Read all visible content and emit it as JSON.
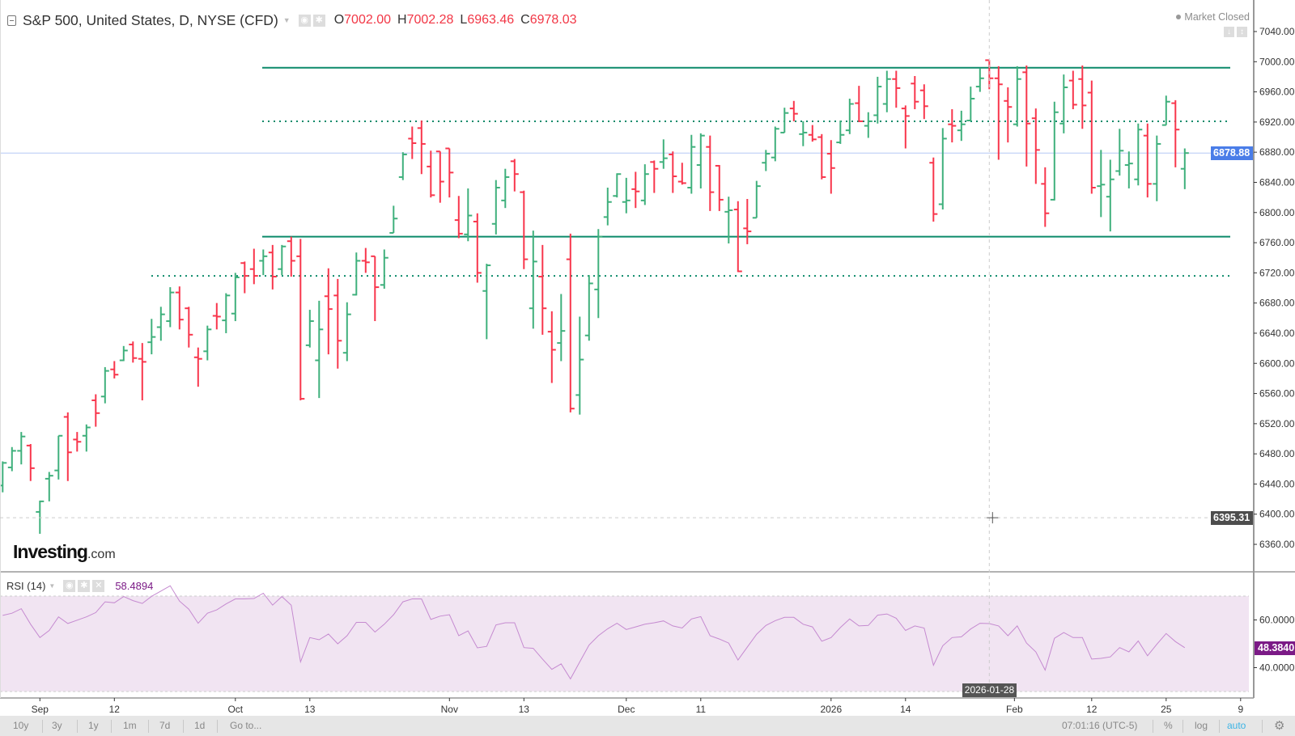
{
  "header": {
    "title": "S&P 500, United States, D, NYSE (CFD)",
    "ohlc": {
      "o_label": "O",
      "o": "7002.00",
      "h_label": "H",
      "h": "7002.28",
      "l_label": "L",
      "l": "6963.46",
      "c_label": "C",
      "c": "6978.03"
    },
    "market_status": "Market Closed"
  },
  "logo": {
    "brand": "Investing",
    "suffix": ".com"
  },
  "price_axis": {
    "ticks": [
      "7040.00",
      "7000.00",
      "6960.00",
      "6920.00",
      "6880.00",
      "6840.00",
      "6800.00",
      "6760.00",
      "6720.00",
      "6680.00",
      "6640.00",
      "6600.00",
      "6560.00",
      "6520.00",
      "6480.00",
      "6440.00",
      "6400.00",
      "6360.00"
    ],
    "last_price": "6878.88",
    "crosshair_price": "6395.31"
  },
  "rsi": {
    "label": "RSI (14)",
    "value": "58.4894",
    "last_value": "48.3840",
    "ticks": [
      "60.0000",
      "40.0000"
    ]
  },
  "time_axis": {
    "labels": [
      "Sep",
      "12",
      "Oct",
      "13",
      "Nov",
      "13",
      "Dec",
      "11",
      "2026",
      "14",
      "Feb",
      "12",
      "25",
      "9"
    ],
    "crosshair_date": "2026-01-28"
  },
  "toolbar": {
    "ranges": [
      "10y",
      "3y",
      "1y",
      "1m",
      "7d",
      "1d"
    ],
    "goto": "Go to...",
    "clock": "07:01:16 (UTC-5)",
    "percent": "%",
    "log": "log",
    "auto": "auto"
  },
  "colors": {
    "up": "#3fb07c",
    "down": "#f8364c",
    "level": "#0b8a6a",
    "last_price": "#4a7de8",
    "rsi_line": "#c58ad0",
    "rsi_fill": "#f1e4f2",
    "auto": "#3bb4e5"
  },
  "chart_data": {
    "type": "ohlc",
    "interval": "D",
    "ylim": [
      6340,
      7060
    ],
    "levels": [
      {
        "price": 6992,
        "style": "solid"
      },
      {
        "price": 6921,
        "style": "dotted"
      },
      {
        "price": 6768,
        "style": "solid"
      },
      {
        "price": 6716,
        "style": "dotted"
      }
    ],
    "bars": [
      [
        6438,
        6470,
        6429,
        6468
      ],
      [
        6462,
        6489,
        6457,
        6484
      ],
      [
        6484,
        6509,
        6466,
        6503
      ],
      [
        6491,
        6493,
        6444,
        6461
      ],
      [
        6403,
        6418,
        6374,
        6417
      ],
      [
        6447,
        6456,
        6417,
        6451
      ],
      [
        6458,
        6504,
        6446,
        6504
      ],
      [
        6529,
        6535,
        6444,
        6482
      ],
      [
        6499,
        6509,
        6483,
        6496
      ],
      [
        6504,
        6519,
        6483,
        6515
      ],
      [
        6551,
        6559,
        6516,
        6534
      ],
      [
        6556,
        6595,
        6547,
        6590
      ],
      [
        6592,
        6603,
        6580,
        6585
      ],
      [
        6604,
        6623,
        6603,
        6617
      ],
      [
        6625,
        6629,
        6601,
        6607
      ],
      [
        6606,
        6627,
        6551,
        6602
      ],
      [
        6628,
        6659,
        6612,
        6635
      ],
      [
        6648,
        6675,
        6630,
        6665
      ],
      [
        6656,
        6701,
        6648,
        6694
      ],
      [
        6694,
        6702,
        6645,
        6658
      ],
      [
        6673,
        6675,
        6621,
        6638
      ],
      [
        6608,
        6621,
        6569,
        6606
      ],
      [
        6616,
        6650,
        6604,
        6645
      ],
      [
        6663,
        6680,
        6645,
        6662
      ],
      [
        6657,
        6693,
        6640,
        6690
      ],
      [
        6666,
        6720,
        6656,
        6714
      ],
      [
        6733,
        6735,
        6693,
        6716
      ],
      [
        6725,
        6752,
        6705,
        6716
      ],
      [
        6736,
        6751,
        6717,
        6742
      ],
      [
        6747,
        6757,
        6698,
        6715
      ],
      [
        6725,
        6757,
        6717,
        6755
      ],
      [
        6762,
        6768,
        6715,
        6736
      ],
      [
        6742,
        6765,
        6551,
        6553
      ],
      [
        6624,
        6671,
        6621,
        6656
      ],
      [
        6604,
        6683,
        6554,
        6645
      ],
      [
        6689,
        6726,
        6612,
        6672
      ],
      [
        6690,
        6712,
        6593,
        6630
      ],
      [
        6614,
        6681,
        6603,
        6665
      ],
      [
        6691,
        6747,
        6690,
        6736
      ],
      [
        6736,
        6753,
        6720,
        6734
      ],
      [
        6742,
        6742,
        6656,
        6701
      ],
      [
        6704,
        6751,
        6699,
        6740
      ],
      [
        6773,
        6809,
        6773,
        6792
      ],
      [
        6847,
        6880,
        6843,
        6877
      ],
      [
        6898,
        6914,
        6871,
        6892
      ],
      [
        6912,
        6922,
        6851,
        6891
      ],
      [
        6861,
        6882,
        6820,
        6823
      ],
      [
        6881,
        6881,
        6813,
        6841
      ],
      [
        6885,
        6885,
        6820,
        6853
      ],
      [
        6790,
        6822,
        6766,
        6772
      ],
      [
        6771,
        6832,
        6762,
        6796
      ],
      [
        6788,
        6799,
        6707,
        6720
      ],
      [
        6696,
        6732,
        6632,
        6730
      ],
      [
        6785,
        6843,
        6771,
        6833
      ],
      [
        6816,
        6858,
        6806,
        6847
      ],
      [
        6868,
        6871,
        6828,
        6851
      ],
      [
        6827,
        6829,
        6725,
        6738
      ],
      [
        6673,
        6776,
        6646,
        6735
      ],
      [
        6715,
        6757,
        6638,
        6673
      ],
      [
        6642,
        6669,
        6574,
        6618
      ],
      [
        6627,
        6692,
        6603,
        6643
      ],
      [
        6738,
        6772,
        6535,
        6540
      ],
      [
        6558,
        6662,
        6532,
        6605
      ],
      [
        6637,
        6717,
        6630,
        6706
      ],
      [
        6698,
        6778,
        6660,
        6768
      ],
      [
        6794,
        6833,
        6783,
        6814
      ],
      [
        6822,
        6852,
        6820,
        6851
      ],
      [
        6814,
        6846,
        6799,
        6816
      ],
      [
        6831,
        6854,
        6806,
        6828
      ],
      [
        6816,
        6864,
        6810,
        6851
      ],
      [
        6867,
        6869,
        6826,
        6858
      ],
      [
        6867,
        6897,
        6858,
        6872
      ],
      [
        6877,
        6881,
        6826,
        6848
      ],
      [
        6841,
        6866,
        6837,
        6839
      ],
      [
        6833,
        6903,
        6825,
        6887
      ],
      [
        6863,
        6905,
        6832,
        6902
      ],
      [
        6887,
        6902,
        6802,
        6827
      ],
      [
        6862,
        6863,
        6802,
        6817
      ],
      [
        6801,
        6821,
        6759,
        6803
      ],
      [
        6804,
        6815,
        6721,
        6722
      ],
      [
        6779,
        6818,
        6758,
        6775
      ],
      [
        6793,
        6842,
        6793,
        6835
      ],
      [
        6866,
        6883,
        6855,
        6878
      ],
      [
        6873,
        6914,
        6868,
        6911
      ],
      [
        6906,
        6939,
        6906,
        6932
      ],
      [
        6938,
        6948,
        6921,
        6931
      ],
      [
        6904,
        6921,
        6888,
        6906
      ],
      [
        6903,
        6916,
        6894,
        6897
      ],
      [
        6900,
        6904,
        6844,
        6847
      ],
      [
        6878,
        6896,
        6825,
        6859
      ],
      [
        6893,
        6922,
        6891,
        6903
      ],
      [
        6909,
        6951,
        6904,
        6944
      ],
      [
        6945,
        6968,
        6920,
        6921
      ],
      [
        6915,
        6933,
        6899,
        6921
      ],
      [
        6929,
        6980,
        6918,
        6967
      ],
      [
        6944,
        6988,
        6933,
        6977
      ],
      [
        6977,
        6988,
        6939,
        6965
      ],
      [
        6938,
        6942,
        6885,
        6928
      ],
      [
        6971,
        6981,
        6937,
        6947
      ],
      [
        6962,
        6970,
        6924,
        6941
      ],
      [
        6866,
        6873,
        6788,
        6798
      ],
      [
        6811,
        6912,
        6804,
        6898
      ],
      [
        6917,
        6937,
        6893,
        6915
      ],
      [
        6909,
        6935,
        6895,
        6917
      ],
      [
        6922,
        6967,
        6921,
        6951
      ],
      [
        6967,
        6991,
        6960,
        6978
      ],
      [
        7002.0,
        7002.28,
        6963.46,
        6978.03
      ],
      [
        6978,
        6994,
        6870,
        6970
      ],
      [
        6948,
        6966,
        6893,
        6940
      ],
      [
        6917,
        6994,
        6914,
        6977
      ],
      [
        6986,
        6995,
        6861,
        6918
      ],
      [
        6925,
        6938,
        6838,
        6883
      ],
      [
        6838,
        6860,
        6781,
        6799
      ],
      [
        6817,
        6947,
        6816,
        6933
      ],
      [
        6918,
        6983,
        6905,
        6966
      ],
      [
        6975,
        6988,
        6937,
        6943
      ],
      [
        6977,
        6995,
        6911,
        6942
      ],
      [
        6959,
        6975,
        6825,
        6833
      ],
      [
        6835,
        6883,
        6794,
        6837
      ],
      [
        6821,
        6870,
        6775,
        6844
      ],
      [
        6855,
        6911,
        6849,
        6882
      ],
      [
        6863,
        6881,
        6832,
        6865
      ],
      [
        6844,
        6918,
        6836,
        6910
      ],
      [
        6902,
        6918,
        6820,
        6838
      ],
      [
        6838,
        6902,
        6815,
        6891
      ],
      [
        6916,
        6955,
        6916,
        6947
      ],
      [
        6945,
        6949,
        6860,
        6910
      ],
      [
        6858,
        6885,
        6831,
        6878.88
      ]
    ],
    "rsi": [
      61.9,
      62.8,
      64.7,
      58.2,
      52.6,
      55.6,
      61.3,
      58.5,
      59.9,
      61.3,
      63.1,
      67.6,
      67.2,
      69.8,
      68.1,
      66.9,
      69.9,
      72.1,
      74.3,
      67.9,
      64.5,
      58.6,
      62.8,
      64.2,
      66.7,
      68.8,
      68.8,
      69.0,
      71.2,
      66.2,
      69.8,
      66.2,
      42.4,
      52.6,
      51.7,
      54.1,
      50.0,
      53.4,
      59.0,
      59.0,
      54.9,
      58.2,
      62.2,
      67.6,
      68.8,
      68.8,
      60.2,
      61.6,
      62.2,
      53.4,
      55.4,
      48.3,
      48.9,
      57.9,
      58.8,
      58.8,
      48.4,
      48.1,
      43.6,
      39.3,
      41.6,
      35.3,
      42.4,
      49.5,
      53.4,
      56.3,
      58.6,
      56.0,
      57.1,
      58.2,
      58.8,
      59.6,
      57.5,
      56.6,
      60.4,
      61.4,
      53.4,
      52.0,
      50.3,
      43.2,
      48.6,
      54.0,
      57.7,
      59.7,
      61.1,
      61.1,
      58.2,
      57.1,
      51.1,
      52.6,
      56.8,
      60.4,
      57.5,
      57.7,
      62.0,
      62.5,
      60.7,
      55.6,
      57.5,
      56.6,
      41.0,
      49.2,
      52.6,
      52.9,
      56.2,
      58.6,
      58.4894,
      57.5,
      53.4,
      57.5,
      50.3,
      46.6,
      39.0,
      52.3,
      54.7,
      52.6,
      52.6,
      43.6,
      43.9,
      44.5,
      48.4,
      46.6,
      51.2,
      45.0,
      49.8,
      54.3,
      50.9,
      48.384
    ],
    "rsi_bands": [
      70,
      30
    ]
  }
}
